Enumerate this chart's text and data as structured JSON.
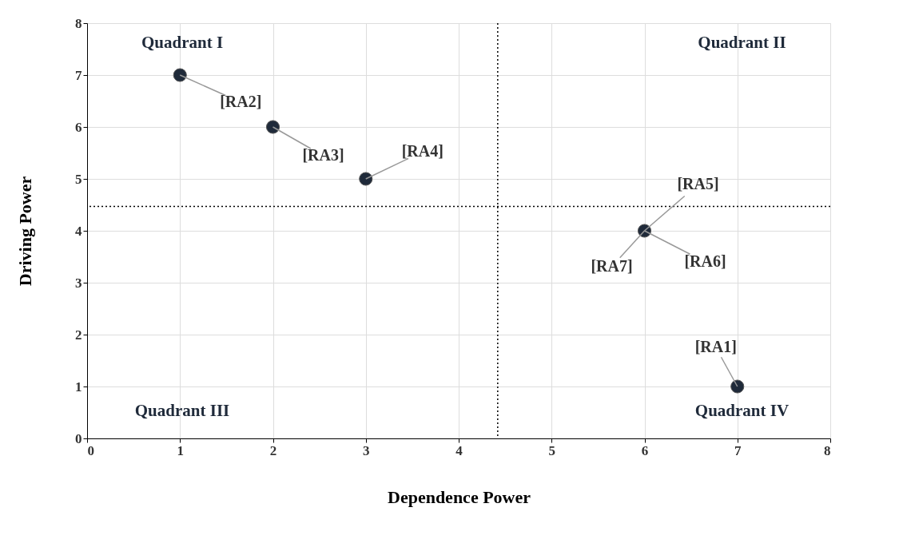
{
  "chart_data": {
    "type": "scatter",
    "xlabel": "Dependence Power",
    "ylabel": "Driving Power",
    "x": [
      1,
      2,
      3,
      6,
      7
    ],
    "series": [
      {
        "color": "#1f2a3a",
        "values": [
          7,
          6,
          5,
          4,
          1
        ]
      }
    ],
    "xlim": [
      0,
      8
    ],
    "ylim": [
      0,
      8
    ],
    "xticks": [
      0,
      1,
      2,
      3,
      4,
      5,
      6,
      7,
      8
    ],
    "yticks": [
      0,
      1,
      2,
      3,
      4,
      5,
      6,
      7,
      8
    ],
    "grid": true,
    "marker": "circle",
    "ref_lines": [
      {
        "axis": "x",
        "value": 4.42,
        "line_style": "dotted",
        "color": "#000000"
      },
      {
        "axis": "y",
        "value": 4.47,
        "line_style": "dotted",
        "color": "#000000"
      }
    ],
    "annotations": [
      {
        "text": "[RA2]",
        "x": 1,
        "y": 7
      },
      {
        "text": "[RA3]",
        "x": 2,
        "y": 6
      },
      {
        "text": "[RA4]",
        "x": 3,
        "y": 5
      },
      {
        "text": "[RA5]",
        "x": 6,
        "y": 4
      },
      {
        "text": "[RA6]",
        "x": 6,
        "y": 4
      },
      {
        "text": "[RA7]",
        "x": 6,
        "y": 4
      },
      {
        "text": "[RA1]",
        "x": 7,
        "y": 1
      },
      "Quadrant I",
      "Quadrant II",
      "Quadrant III",
      "Quadrant IV"
    ]
  }
}
